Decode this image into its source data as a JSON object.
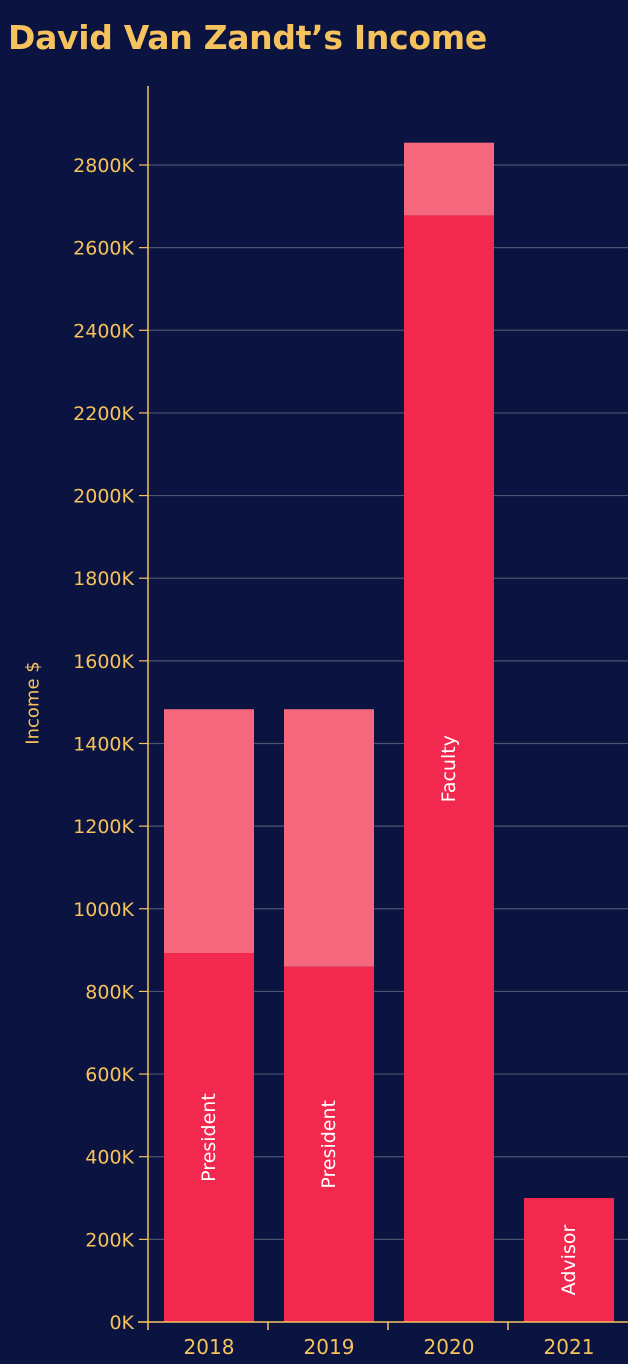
{
  "colors": {
    "background": "#0b1340",
    "text_accent": "#f6c25b",
    "bar_primary": "#f2284f",
    "bar_secondary": "#f4677d",
    "gridline": "#4d5270",
    "axis": "#f6c25b",
    "bar_label": "#ffffff"
  },
  "chart_data": {
    "type": "bar",
    "stacked": true,
    "title": "David Van Zandt’s Income",
    "xlabel": "",
    "ylabel": "Income $",
    "categories": [
      "2018",
      "2019",
      "2020",
      "2021"
    ],
    "series": [
      {
        "values": [
          893,
          860,
          2678,
          300
        ]
      },
      {
        "values": [
          590,
          623,
          176,
          0
        ]
      }
    ],
    "bar_labels": [
      "President",
      "President",
      "Faculty",
      "Advisor"
    ],
    "ylim": [
      0,
      2950
    ],
    "y_ticks": [
      0,
      200,
      400,
      600,
      800,
      1000,
      1200,
      1400,
      1600,
      1800,
      2000,
      2200,
      2400,
      2600,
      2800
    ],
    "y_tick_labels": [
      "0K",
      "200K",
      "400K",
      "600K",
      "800K",
      "1000K",
      "1200K",
      "1400K",
      "1600K",
      "1800K",
      "2000K",
      "2200K",
      "2400K",
      "2600K",
      "2800K"
    ],
    "grid": true,
    "legend": "none"
  }
}
